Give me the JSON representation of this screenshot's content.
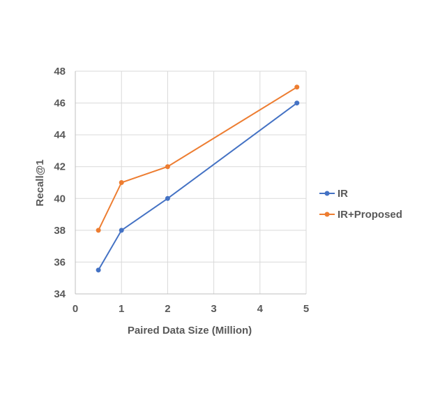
{
  "chart_data": {
    "type": "line",
    "xlabel": "Paired Data Size (Million)",
    "ylabel": "Recall@1",
    "xlim": [
      0,
      5
    ],
    "ylim": [
      34,
      48
    ],
    "xticks": [
      "0",
      "1",
      "2",
      "3",
      "4",
      "5"
    ],
    "yticks": [
      "34",
      "36",
      "38",
      "40",
      "42",
      "44",
      "46",
      "48"
    ],
    "grid": true,
    "legend_position": "right",
    "series": [
      {
        "name": "IR",
        "color": "#4472C4",
        "x": [
          0.5,
          1,
          2,
          4.8
        ],
        "y": [
          35.5,
          38,
          40,
          46
        ]
      },
      {
        "name": "IR+Proposed",
        "color": "#ED7D31",
        "x": [
          0.5,
          1,
          2,
          4.8
        ],
        "y": [
          38,
          41,
          42,
          47
        ]
      }
    ]
  }
}
